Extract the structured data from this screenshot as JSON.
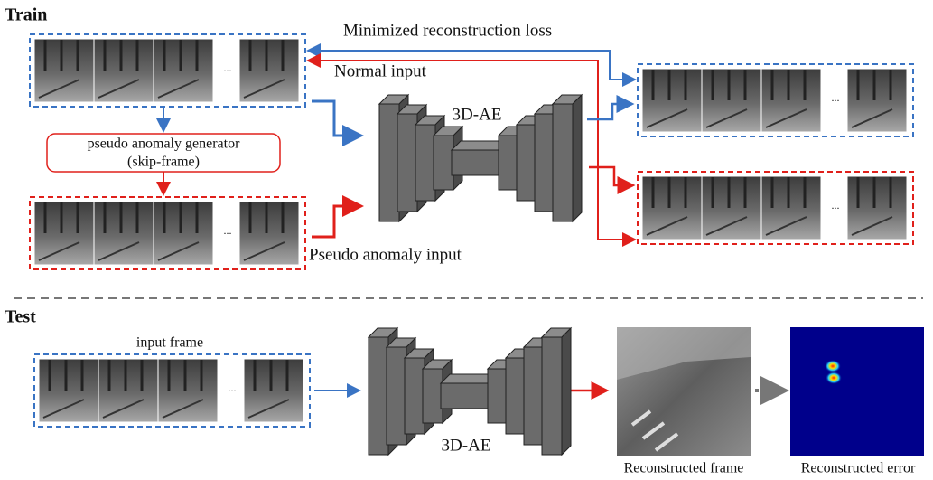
{
  "train": {
    "title": "Train",
    "loss_label": "Minimized reconstruction loss",
    "normal_input": "Normal input",
    "model": "3D-AE",
    "generator": {
      "line1": "pseudo anomaly generator",
      "line2": "(skip-frame)"
    },
    "pseudo_input": "Pseudo anomaly input"
  },
  "test": {
    "title": "Test",
    "input_frame": "input frame",
    "model": "3D-AE",
    "reconstructed_frame": "Reconstructed frame",
    "reconstructed_error": "Reconstructed error"
  },
  "ellipsis": "..."
}
